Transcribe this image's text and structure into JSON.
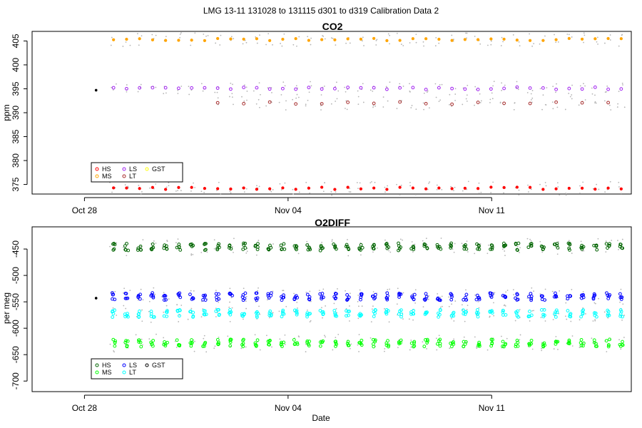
{
  "page_title": "LMG   13-11     131028 to 131115     d301 to d319    Calibration Data 2",
  "x_axis_label": "Date",
  "x_ticks": [
    "Oct 28",
    "Nov 04",
    "Nov 11"
  ],
  "chart_data": [
    {
      "type": "scatter",
      "title": "CO2",
      "ylabel": "ppm",
      "ylim": [
        373,
        407
      ],
      "yticks": [
        375,
        380,
        385,
        390,
        395,
        400,
        405
      ],
      "x_range_days": [
        301,
        319
      ],
      "grid": false,
      "legend_position": "bottom-left",
      "legend": [
        {
          "name": "HS",
          "color": "#ff0000"
        },
        {
          "name": "MS",
          "color": "#ffa500"
        },
        {
          "name": "LS",
          "color": "#a020f0"
        },
        {
          "name": "LT",
          "color": "#a52a2a"
        },
        {
          "name": "GST",
          "color": "#ffff00"
        }
      ],
      "series": [
        {
          "name": "HS",
          "color": "#ff0000",
          "marker": "filled",
          "value": 374.2
        },
        {
          "name": "MS",
          "color": "#ffa500",
          "marker": "filled",
          "value": 405.3
        },
        {
          "name": "LS",
          "color": "#a020f0",
          "marker": "open",
          "value": 395.1
        },
        {
          "name": "LT",
          "color": "#a52a2a",
          "marker": "open",
          "value": 392.0
        }
      ],
      "reference_point": {
        "x": 301.4,
        "y": 394.7
      }
    },
    {
      "type": "scatter",
      "title": "O2DIFF",
      "ylabel": "per meg",
      "ylim": [
        -720,
        -408
      ],
      "yticks": [
        -450,
        -500,
        -550,
        -600,
        -650,
        -700
      ],
      "x_range_days": [
        301,
        319
      ],
      "grid": false,
      "legend_position": "bottom-left",
      "legend": [
        {
          "name": "HS",
          "color": "#006400"
        },
        {
          "name": "MS",
          "color": "#00ff00"
        },
        {
          "name": "LS",
          "color": "#0000ff"
        },
        {
          "name": "LT",
          "color": "#00ffff"
        },
        {
          "name": "GST",
          "color": "#000000"
        }
      ],
      "series": [
        {
          "name": "HS",
          "color": "#006400",
          "marker": "open",
          "value": -446
        },
        {
          "name": "MS",
          "color": "#00ff00",
          "marker": "open",
          "value": -628
        },
        {
          "name": "LS",
          "color": "#0000ff",
          "marker": "open",
          "value": -540
        },
        {
          "name": "LT",
          "color": "#00ffff",
          "marker": "open",
          "value": -572
        }
      ],
      "reference_point": {
        "x": 301.4,
        "y": -543
      }
    }
  ]
}
